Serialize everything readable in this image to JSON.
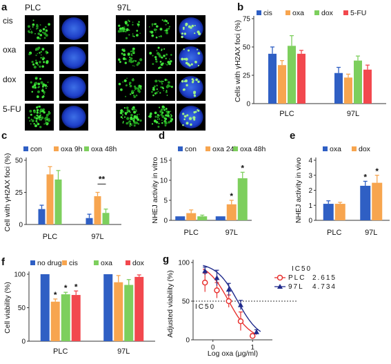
{
  "panels": {
    "a": {
      "label": "a",
      "col_labels": [
        "PLC",
        "97L"
      ],
      "row_labels": [
        "cis",
        "oxa",
        "dox",
        "5-FU"
      ]
    },
    "b": {
      "label": "b"
    },
    "c": {
      "label": "c"
    },
    "d": {
      "label": "d"
    },
    "e": {
      "label": "e"
    },
    "f": {
      "label": "f"
    },
    "g": {
      "label": "g"
    }
  },
  "colors": {
    "blue": "#2f5fc4",
    "orange": "#f7a54f",
    "green": "#7dcf5d",
    "red": "#f2484e",
    "navy": "#1f2a8c",
    "redline": "#e8302e"
  },
  "chart_data": [
    {
      "id": "b",
      "type": "bar",
      "ylabel": "Cells with γH2AX foci (%)",
      "categories": [
        "PLC",
        "97L"
      ],
      "ylim": [
        0,
        75
      ],
      "yticks": [
        0,
        25,
        50,
        75
      ],
      "series": [
        {
          "name": "cis",
          "color": "#2f5fc4",
          "values": [
            44,
            27
          ],
          "errors": [
            6,
            5
          ]
        },
        {
          "name": "oxa",
          "color": "#f7a54f",
          "values": [
            34,
            23
          ],
          "errors": [
            4,
            3
          ]
        },
        {
          "name": "dox",
          "color": "#7dcf5d",
          "values": [
            51,
            38
          ],
          "errors": [
            9,
            4
          ]
        },
        {
          "name": "5-FU",
          "color": "#f2484e",
          "values": [
            44,
            30
          ],
          "errors": [
            3,
            4
          ]
        }
      ],
      "annotations": []
    },
    {
      "id": "c",
      "type": "bar",
      "ylabel": "Cell with γH2AX foci (%)",
      "categories": [
        "PLC",
        "97L"
      ],
      "ylim": [
        0,
        50
      ],
      "yticks": [
        0,
        25,
        50
      ],
      "series": [
        {
          "name": "con",
          "color": "#2f5fc4",
          "values": [
            12,
            5
          ],
          "errors": [
            3,
            3
          ]
        },
        {
          "name": "oxa 9h",
          "color": "#f7a54f",
          "values": [
            39,
            22
          ],
          "errors": [
            6,
            3
          ]
        },
        {
          "name": "oxa 48h",
          "color": "#7dcf5d",
          "values": [
            35,
            9
          ],
          "errors": [
            7,
            3
          ]
        }
      ],
      "annotations": [
        {
          "text": "**",
          "category": 1
        }
      ]
    },
    {
      "id": "d",
      "type": "bar",
      "ylabel": "NHEJ activity in vitro",
      "categories": [
        "PLC",
        "97L"
      ],
      "ylim": [
        0,
        15
      ],
      "yticks": [
        0,
        5,
        10,
        15
      ],
      "series": [
        {
          "name": "con",
          "color": "#2f5fc4",
          "values": [
            1,
            1
          ],
          "errors": [
            0,
            0
          ]
        },
        {
          "name": "oxa 24h",
          "color": "#f7a54f",
          "values": [
            1.8,
            4
          ],
          "errors": [
            0.8,
            1
          ]
        },
        {
          "name": "oxa 48h",
          "color": "#7dcf5d",
          "values": [
            1,
            10.5
          ],
          "errors": [
            0.3,
            1.5
          ]
        }
      ],
      "annotations": [
        {
          "text": "*",
          "category": 1,
          "series": 1
        },
        {
          "text": "*",
          "category": 1,
          "series": 2
        }
      ]
    },
    {
      "id": "e",
      "type": "bar",
      "ylabel": "NHEJ activity in vivo",
      "categories": [
        "PLC",
        "97L"
      ],
      "ylim": [
        0,
        4
      ],
      "yticks": [
        0,
        1,
        2,
        3,
        4
      ],
      "series": [
        {
          "name": "oxa",
          "color": "#2f5fc4",
          "values": [
            1.1,
            2.3
          ],
          "errors": [
            0.2,
            0.3
          ]
        },
        {
          "name": "dox",
          "color": "#f7a54f",
          "values": [
            1.1,
            2.5
          ],
          "errors": [
            0.1,
            0.5
          ]
        }
      ],
      "annotations": [
        {
          "text": "*",
          "category": 1,
          "series": 0
        },
        {
          "text": "*",
          "category": 1,
          "series": 1
        }
      ]
    },
    {
      "id": "f",
      "type": "bar",
      "ylabel": "Cell viability (%)",
      "categories": [
        "PLC",
        "97L"
      ],
      "ylim": [
        0,
        100
      ],
      "yticks": [
        0,
        50,
        100
      ],
      "series": [
        {
          "name": "no drug",
          "color": "#2f5fc4",
          "values": [
            100,
            100
          ],
          "errors": [
            0,
            0
          ]
        },
        {
          "name": "cis",
          "color": "#f7a54f",
          "values": [
            59,
            88
          ],
          "errors": [
            4,
            10
          ]
        },
        {
          "name": "oxa",
          "color": "#7dcf5d",
          "values": [
            70,
            84
          ],
          "errors": [
            3,
            8
          ]
        },
        {
          "name": "dox",
          "color": "#f2484e",
          "values": [
            69,
            96
          ],
          "errors": [
            6,
            3
          ]
        }
      ],
      "annotations": [
        {
          "text": "*",
          "category": 0,
          "series": 1
        },
        {
          "text": "*",
          "category": 0,
          "series": 2
        },
        {
          "text": "*",
          "category": 0,
          "series": 3
        }
      ]
    },
    {
      "id": "g",
      "type": "scatter",
      "title": "",
      "xlabel": "Log oxa (μg/ml)",
      "ylabel": "Adjusted viability (%)",
      "xlim": [
        -0.5,
        1.5
      ],
      "ylim": [
        0,
        100
      ],
      "xticks": [
        0,
        1
      ],
      "yticks": [
        0,
        50,
        100
      ],
      "ic50_line_label": "IC50",
      "legend_header": "IC50",
      "series": [
        {
          "name": "PLC",
          "ic50": "2.615",
          "color": "#e8302e",
          "marker": "circle",
          "x": [
            -0.2,
            0.1,
            0.4,
            0.7,
            1.0
          ],
          "y": [
            74,
            64,
            50,
            24,
            5
          ],
          "errors": [
            12,
            10,
            8,
            12,
            3
          ]
        },
        {
          "name": "97L",
          "ic50": "4.734",
          "color": "#1f2a8c",
          "marker": "triangle",
          "x": [
            -0.2,
            0.1,
            0.4,
            0.7,
            1.1
          ],
          "y": [
            89,
            80,
            65,
            45,
            10
          ],
          "errors": [
            5,
            10,
            8,
            6,
            3
          ]
        }
      ]
    }
  ]
}
